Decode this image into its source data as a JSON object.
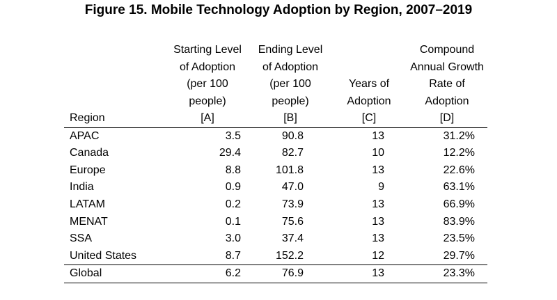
{
  "title": "Figure 15. Mobile Technology Adoption by Region, 2007–2019",
  "columns": [
    {
      "lines": [
        "Region"
      ]
    },
    {
      "lines": [
        "Starting Level",
        "of Adoption",
        "(per 100",
        "people)",
        "[A]"
      ]
    },
    {
      "lines": [
        "Ending Level",
        "of Adoption",
        "(per 100",
        "people)",
        "[B]"
      ]
    },
    {
      "lines": [
        "Years of",
        "Adoption",
        "[C]"
      ]
    },
    {
      "lines": [
        "Compound",
        "Annual Growth",
        "Rate of",
        "Adoption",
        "[D]"
      ]
    }
  ],
  "rows": [
    {
      "region": "APAC",
      "start": "3.5",
      "end": "90.8",
      "years": "13",
      "cagr": "31.2%"
    },
    {
      "region": "Canada",
      "start": "29.4",
      "end": "82.7",
      "years": "10",
      "cagr": "12.2%"
    },
    {
      "region": "Europe",
      "start": "8.8",
      "end": "101.8",
      "years": "13",
      "cagr": "22.6%"
    },
    {
      "region": "India",
      "start": "0.9",
      "end": "47.0",
      "years": "9",
      "cagr": "63.1%"
    },
    {
      "region": "LATAM",
      "start": "0.2",
      "end": "73.9",
      "years": "13",
      "cagr": "66.9%"
    },
    {
      "region": "MENAT",
      "start": "0.1",
      "end": "75.6",
      "years": "13",
      "cagr": "83.9%"
    },
    {
      "region": "SSA",
      "start": "3.0",
      "end": "37.4",
      "years": "13",
      "cagr": "23.5%"
    },
    {
      "region": "United States",
      "start": "8.7",
      "end": "152.2",
      "years": "12",
      "cagr": "29.7%"
    }
  ],
  "total": {
    "region": "Global",
    "start": "6.2",
    "end": "76.9",
    "years": "13",
    "cagr": "23.3%"
  }
}
